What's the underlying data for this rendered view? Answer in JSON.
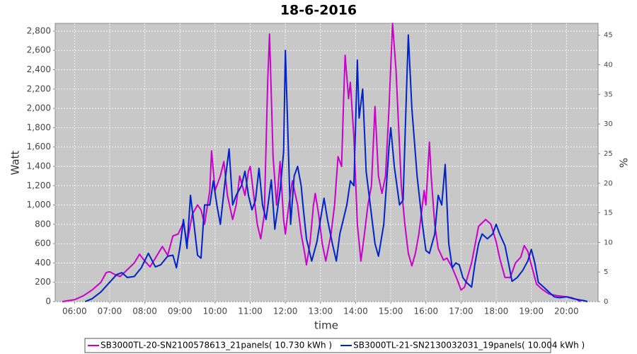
{
  "chart_data": {
    "type": "line",
    "title": "18-6-2016",
    "x_label": "time",
    "y_label": "Watt",
    "y2_label": "%",
    "xlim": [
      5.45,
      20.9
    ],
    "xticks": [
      {
        "value": 6,
        "label": "06:00"
      },
      {
        "value": 7,
        "label": "07:00"
      },
      {
        "value": 8,
        "label": "08:00"
      },
      {
        "value": 9,
        "label": "09:00"
      },
      {
        "value": 10,
        "label": "10:00"
      },
      {
        "value": 11,
        "label": "11:00"
      },
      {
        "value": 12,
        "label": "12:00"
      },
      {
        "value": 13,
        "label": "13:00"
      },
      {
        "value": 14,
        "label": "14:00"
      },
      {
        "value": 15,
        "label": "15:00"
      },
      {
        "value": 16,
        "label": "16:00"
      },
      {
        "value": 17,
        "label": "17:00"
      },
      {
        "value": 18,
        "label": "18:00"
      },
      {
        "value": 19,
        "label": "19:00"
      },
      {
        "value": 20,
        "label": "20:00"
      }
    ],
    "ylim": [
      0,
      2880
    ],
    "yticks": [
      0,
      200,
      400,
      600,
      800,
      {
        "value": 1000,
        "label": "1,000"
      },
      {
        "value": 1200,
        "label": "1,200"
      },
      {
        "value": 1400,
        "label": "1,400"
      },
      {
        "value": 1600,
        "label": "1,600"
      },
      {
        "value": 1800,
        "label": "1,800"
      },
      {
        "value": 2000,
        "label": "2,000"
      },
      {
        "value": 2200,
        "label": "2,200"
      },
      {
        "value": 2400,
        "label": "2,400"
      },
      {
        "value": 2600,
        "label": "2,600"
      },
      {
        "value": 2800,
        "label": "2,800"
      }
    ],
    "y2lim": [
      0,
      47
    ],
    "y2ticks": [
      0,
      5,
      10,
      15,
      20,
      25,
      30,
      35,
      40,
      45
    ],
    "grid": true,
    "legend": "bottom",
    "series": [
      {
        "name": "SB3000TL-20-SN2100578613_21panels( 10.730 kWh )",
        "color": "#cc00cc",
        "x": [
          5.65,
          6.0,
          6.25,
          6.5,
          6.75,
          6.9,
          7.0,
          7.15,
          7.3,
          7.5,
          7.7,
          7.85,
          8.0,
          8.15,
          8.3,
          8.5,
          8.65,
          8.8,
          8.95,
          9.1,
          9.2,
          9.35,
          9.5,
          9.6,
          9.7,
          9.85,
          9.9,
          10.0,
          10.15,
          10.25,
          10.35,
          10.5,
          10.6,
          10.7,
          10.85,
          10.95,
          11.0,
          11.1,
          11.2,
          11.3,
          11.4,
          11.5,
          11.55,
          11.65,
          11.75,
          11.85,
          11.95,
          12.0,
          12.1,
          12.2,
          12.35,
          12.45,
          12.55,
          12.6,
          12.7,
          12.8,
          12.85,
          12.95,
          13.05,
          13.15,
          13.3,
          13.4,
          13.5,
          13.6,
          13.65,
          13.7,
          13.8,
          13.85,
          13.95,
          14.05,
          14.15,
          14.25,
          14.35,
          14.45,
          14.55,
          14.65,
          14.75,
          14.85,
          14.95,
          15.05,
          15.15,
          15.3,
          15.4,
          15.5,
          15.6,
          15.7,
          15.8,
          15.95,
          16.0,
          16.1,
          16.15,
          16.25,
          16.35,
          16.5,
          16.6,
          16.75,
          16.9,
          17.0,
          17.1,
          17.3,
          17.5,
          17.7,
          17.85,
          18.0,
          18.1,
          18.25,
          18.4,
          18.55,
          18.7,
          18.8,
          18.9,
          19.0,
          19.15,
          19.3,
          19.5,
          19.75,
          20.0,
          20.15,
          20.3,
          20.4
        ],
        "values": [
          0,
          20,
          60,
          120,
          200,
          300,
          310,
          280,
          260,
          330,
          400,
          490,
          420,
          360,
          450,
          570,
          480,
          680,
          700,
          820,
          600,
          900,
          1000,
          950,
          800,
          1150,
          1560,
          1150,
          1300,
          1450,
          1100,
          850,
          1000,
          1300,
          1100,
          1350,
          1400,
          1100,
          800,
          650,
          900,
          2300,
          2770,
          1500,
          1000,
          1450,
          850,
          700,
          1000,
          1250,
          1000,
          700,
          500,
          380,
          600,
          1000,
          1120,
          900,
          600,
          420,
          700,
          1000,
          1500,
          1400,
          2000,
          2550,
          2100,
          2270,
          1700,
          800,
          420,
          700,
          1000,
          1200,
          2020,
          1300,
          1120,
          1300,
          2000,
          2880,
          2400,
          1200,
          800,
          500,
          370,
          500,
          700,
          1150,
          1000,
          1650,
          1300,
          800,
          550,
          430,
          450,
          350,
          220,
          120,
          150,
          400,
          780,
          850,
          800,
          620,
          450,
          250,
          250,
          400,
          460,
          580,
          520,
          380,
          180,
          130,
          80,
          60,
          50,
          40,
          20,
          0
        ]
      },
      {
        "name": "SB3000TL-21-SN2130032031_19panels( 10.004 kWh )",
        "color": "#0022cc",
        "x": [
          6.3,
          6.5,
          6.75,
          7.0,
          7.2,
          7.35,
          7.5,
          7.7,
          7.9,
          8.1,
          8.3,
          8.45,
          8.65,
          8.8,
          8.9,
          9.0,
          9.1,
          9.2,
          9.3,
          9.4,
          9.5,
          9.6,
          9.7,
          9.85,
          9.95,
          10.05,
          10.15,
          10.3,
          10.4,
          10.5,
          10.6,
          10.75,
          10.85,
          10.95,
          11.05,
          11.15,
          11.25,
          11.35,
          11.45,
          11.6,
          11.7,
          11.85,
          11.95,
          12.0,
          12.05,
          12.15,
          12.25,
          12.35,
          12.45,
          12.5,
          12.6,
          12.75,
          12.9,
          13.0,
          13.1,
          13.2,
          13.35,
          13.45,
          13.55,
          13.65,
          13.75,
          13.85,
          13.95,
          14.05,
          14.1,
          14.2,
          14.3,
          14.45,
          14.55,
          14.65,
          14.8,
          14.95,
          15.0,
          15.1,
          15.25,
          15.35,
          15.45,
          15.5,
          15.6,
          15.75,
          15.9,
          16.0,
          16.1,
          16.25,
          16.35,
          16.45,
          16.55,
          16.65,
          16.75,
          16.85,
          16.95,
          17.05,
          17.15,
          17.3,
          17.4,
          17.5,
          17.6,
          17.75,
          17.9,
          18.0,
          18.1,
          18.25,
          18.35,
          18.45,
          18.6,
          18.75,
          18.9,
          19.0,
          19.1,
          19.2,
          19.35,
          19.5,
          19.65,
          19.8,
          20.0,
          20.2,
          20.35,
          20.5,
          20.6
        ],
        "values": [
          0,
          30,
          100,
          200,
          280,
          300,
          250,
          260,
          350,
          500,
          360,
          380,
          470,
          480,
          350,
          560,
          850,
          550,
          1100,
          800,
          480,
          450,
          1000,
          1000,
          1250,
          1000,
          800,
          1300,
          1580,
          1000,
          1100,
          1200,
          1350,
          1100,
          950,
          1050,
          1380,
          1000,
          850,
          1260,
          750,
          1150,
          1550,
          2600,
          2000,
          800,
          1300,
          1400,
          1200,
          1000,
          650,
          420,
          620,
          850,
          1070,
          850,
          580,
          420,
          700,
          850,
          1000,
          1250,
          1200,
          2500,
          1900,
          2200,
          1350,
          900,
          600,
          470,
          800,
          1600,
          1800,
          1400,
          1000,
          1050,
          2200,
          2760,
          2000,
          1300,
          800,
          530,
          500,
          700,
          1100,
          1000,
          1420,
          600,
          350,
          400,
          380,
          250,
          200,
          150,
          400,
          600,
          700,
          650,
          700,
          800,
          700,
          580,
          400,
          210,
          250,
          320,
          420,
          540,
          400,
          200,
          150,
          100,
          50,
          40,
          50,
          30,
          20,
          10,
          0
        ]
      }
    ]
  }
}
